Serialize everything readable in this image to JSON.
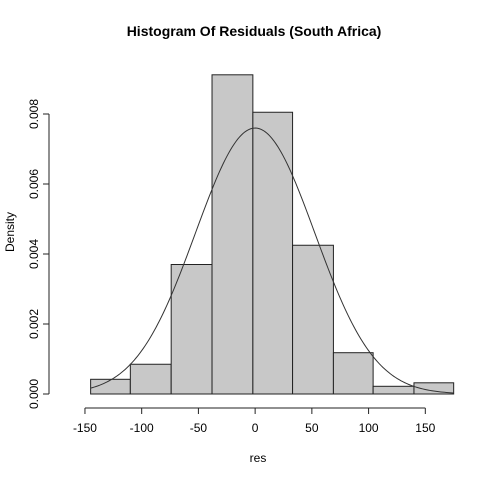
{
  "chart_data": {
    "type": "bar",
    "title": "Histogram Of Residuals (South Africa)",
    "xlabel": "res",
    "ylabel": "Density",
    "bins": [
      {
        "x0": -145,
        "x1": -110,
        "density": 0.00042
      },
      {
        "x0": -110,
        "x1": -74,
        "density": 0.00085
      },
      {
        "x0": -74,
        "x1": -38,
        "density": 0.0037
      },
      {
        "x0": -38,
        "x1": -2,
        "density": 0.00912
      },
      {
        "x0": -2,
        "x1": 33,
        "density": 0.00805
      },
      {
        "x0": 33,
        "x1": 69,
        "density": 0.00425
      },
      {
        "x0": 69,
        "x1": 104,
        "density": 0.00118
      },
      {
        "x0": 104,
        "x1": 140,
        "density": 0.00022
      },
      {
        "x0": 140,
        "x1": 175,
        "density": 0.00032
      }
    ],
    "normal_curve": {
      "mean": 0,
      "sd": 52.5
    },
    "x_ticks": [
      "-150",
      "-100",
      "-50",
      "0",
      "50",
      "100",
      "150"
    ],
    "x_tick_values": [
      -150,
      -100,
      -50,
      0,
      50,
      100,
      150
    ],
    "y_ticks": [
      "0.000",
      "0.002",
      "0.004",
      "0.006",
      "0.008"
    ],
    "y_tick_values": [
      0,
      0.002,
      0.004,
      0.006,
      0.008
    ],
    "xlim": [
      -150,
      175
    ],
    "ylim": [
      0,
      0.0092
    ],
    "grid": false,
    "legend": "none"
  }
}
